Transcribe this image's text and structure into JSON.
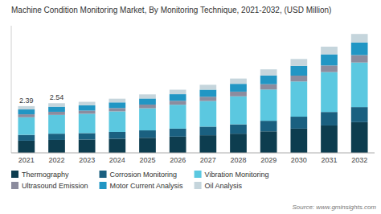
{
  "chart_data": {
    "type": "bar",
    "stacked": true,
    "title": "Machine Condition Monitoring Market, By Monitoring Technique, 2021-2032, (USD Million)",
    "source": "Source: www.gminsights.com",
    "categories": [
      "2021",
      "2022",
      "2023",
      "2024",
      "2025",
      "2026",
      "2027",
      "2028",
      "2029",
      "2030",
      "2031",
      "2032"
    ],
    "series": [
      {
        "name": "Thermography",
        "color": "#0d3d4f",
        "values": [
          0.62,
          0.66,
          0.68,
          0.72,
          0.77,
          0.83,
          0.9,
          0.98,
          1.1,
          1.24,
          1.4,
          1.57
        ]
      },
      {
        "name": "Corrosion Monitoring",
        "color": "#1a6080",
        "values": [
          0.3,
          0.32,
          0.33,
          0.35,
          0.38,
          0.41,
          0.44,
          0.48,
          0.54,
          0.61,
          0.69,
          0.77
        ]
      },
      {
        "name": "Vibration Monitoring",
        "color": "#5bc8e0",
        "values": [
          0.9,
          0.96,
          0.99,
          1.05,
          1.13,
          1.22,
          1.31,
          1.43,
          1.6,
          1.8,
          2.04,
          2.28
        ]
      },
      {
        "name": "Ultrasound Emission",
        "color": "#8c8c9e",
        "values": [
          0.15,
          0.16,
          0.16,
          0.17,
          0.19,
          0.2,
          0.22,
          0.24,
          0.27,
          0.3,
          0.34,
          0.38
        ]
      },
      {
        "name": "Motor Current Analysis",
        "color": "#2196c4",
        "values": [
          0.25,
          0.26,
          0.27,
          0.29,
          0.31,
          0.34,
          0.36,
          0.4,
          0.45,
          0.5,
          0.57,
          0.64
        ]
      },
      {
        "name": "Oil Analysis",
        "color": "#c5d5dc",
        "values": [
          0.17,
          0.18,
          0.18,
          0.19,
          0.21,
          0.23,
          0.25,
          0.27,
          0.31,
          0.35,
          0.39,
          0.44
        ]
      }
    ],
    "annotations": [
      {
        "x": "2021",
        "text": "2.39"
      },
      {
        "x": "2022",
        "text": "2.54"
      }
    ],
    "ylim": [
      0,
      6.5
    ],
    "grid": false,
    "tick_labels": "x",
    "legend": "bottom"
  }
}
